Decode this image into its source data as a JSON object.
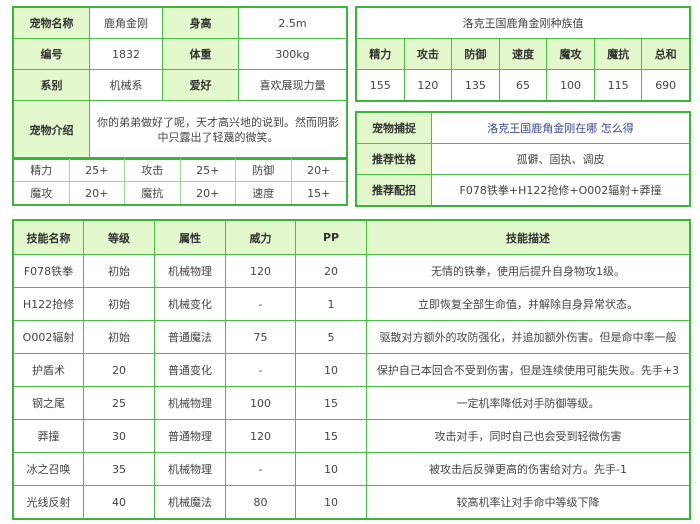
{
  "pet": {
    "name_label": "宠物名称",
    "name": "鹿角金刚",
    "height_label": "身高",
    "height": "2.5m",
    "id_label": "编号",
    "id": "1832",
    "weight_label": "体重",
    "weight": "300kg",
    "type_label": "系别",
    "type": "机械系",
    "hobby_label": "爱好",
    "hobby": "喜欢展现力量",
    "intro_label": "宠物介绍",
    "intro": "你的弟弟做好了呢，天才高兴地的说到。然而阴影中只露出了轻蔑的微笑。"
  },
  "growth": [
    {
      "label": "精力",
      "value": "25+"
    },
    {
      "label": "攻击",
      "value": "25+"
    },
    {
      "label": "防御",
      "value": "20+"
    },
    {
      "label": "魔攻",
      "value": "20+"
    },
    {
      "label": "魔抗",
      "value": "20+"
    },
    {
      "label": "速度",
      "value": "15+"
    }
  ],
  "race": {
    "title": "洛克王国鹿角金刚种族值",
    "headers": [
      "精力",
      "攻击",
      "防御",
      "速度",
      "魔攻",
      "魔抗",
      "总和"
    ],
    "values": [
      "155",
      "120",
      "135",
      "65",
      "100",
      "115",
      "690"
    ]
  },
  "info": {
    "capture_label": "宠物捕捉",
    "capture_link": "洛克王国鹿角金刚在哪 怎么得",
    "nature_label": "推荐性格",
    "nature": "孤僻、固执、调皮",
    "moves_label": "推荐配招",
    "moves": "F078铁拳+H122抢修+O002辐射+莽撞"
  },
  "skills": {
    "headers": [
      "技能名称",
      "等级",
      "属性",
      "威力",
      "PP",
      "技能描述"
    ],
    "rows": [
      [
        "F078铁拳",
        "初始",
        "机械物理",
        "120",
        "20",
        "无情的铁拳，使用后提升自身物攻1级。"
      ],
      [
        "H122抢修",
        "初始",
        "机械变化",
        "-",
        "1",
        "立即恢复全部生命值，并解除自身异常状态。"
      ],
      [
        "O002辐射",
        "初始",
        "普通魔法",
        "75",
        "5",
        "驱散对方额外的攻防强化，并追加额外伤害。但是命中率一般"
      ],
      [
        "护盾术",
        "20",
        "普通变化",
        "-",
        "10",
        "保护自己本回合不受到伤害，但是连续使用可能失败。先手+3"
      ],
      [
        "钢之尾",
        "25",
        "机械物理",
        "100",
        "15",
        "一定机率降低对手防御等级。"
      ],
      [
        "莽撞",
        "30",
        "普通物理",
        "120",
        "15",
        "攻击对手，同时自己也会受到轻微伤害"
      ],
      [
        "冰之召唤",
        "35",
        "机械物理",
        "-",
        "10",
        "被攻击后反弹更高的伤害给对方。先手-1"
      ],
      [
        "光线反射",
        "40",
        "机械魔法",
        "80",
        "10",
        "较高机率让对手命中等级下降"
      ]
    ]
  }
}
